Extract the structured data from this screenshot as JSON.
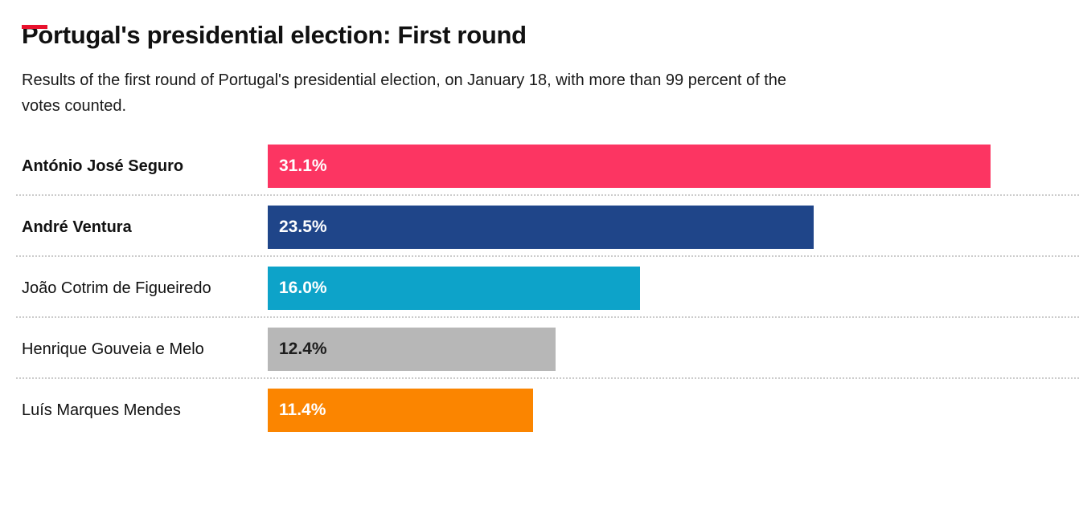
{
  "header": {
    "title": "Portugal's presidential election: First round",
    "subtitle_lines": [
      "Results of the first round of Portugal's presidential election, on January 18, with more than 99 percent of the",
      "votes counted."
    ]
  },
  "chart_data": {
    "type": "bar",
    "orientation": "horizontal",
    "title": "Portugal's presidential election: First round",
    "subtitle": "Results of the first round of Portugal's presidential election, on January 18, with more than 99 percent of the votes counted.",
    "categories": [
      "António José Seguro",
      "André Ventura",
      "João Cotrim de Figueiredo",
      "Henrique Gouveia e Melo",
      "Luís Marques Mendes"
    ],
    "values": [
      31.1,
      23.5,
      16.0,
      12.4,
      11.4
    ],
    "value_labels": [
      "31.1%",
      "23.5%",
      "16.0%",
      "12.4%",
      "11.4%"
    ],
    "bar_colors": [
      "#fc3562",
      "#1f4589",
      "#0da3c9",
      "#b7b7b7",
      "#fb8500"
    ],
    "value_label_colors": [
      "#ffffff",
      "#ffffff",
      "#ffffff",
      "#1d1d1d",
      "#ffffff"
    ],
    "category_bold": [
      true,
      true,
      false,
      false,
      false
    ],
    "xlabel": "",
    "ylabel": "",
    "xlim": [
      0,
      34.9
    ],
    "grid": false,
    "legend": "none",
    "axis_ticks": "none"
  },
  "style": {
    "accent_dash_color": "#e8112d",
    "separator_color": "#cccccc",
    "background_color": "#ffffff",
    "text_color": "#1a1a1a"
  }
}
